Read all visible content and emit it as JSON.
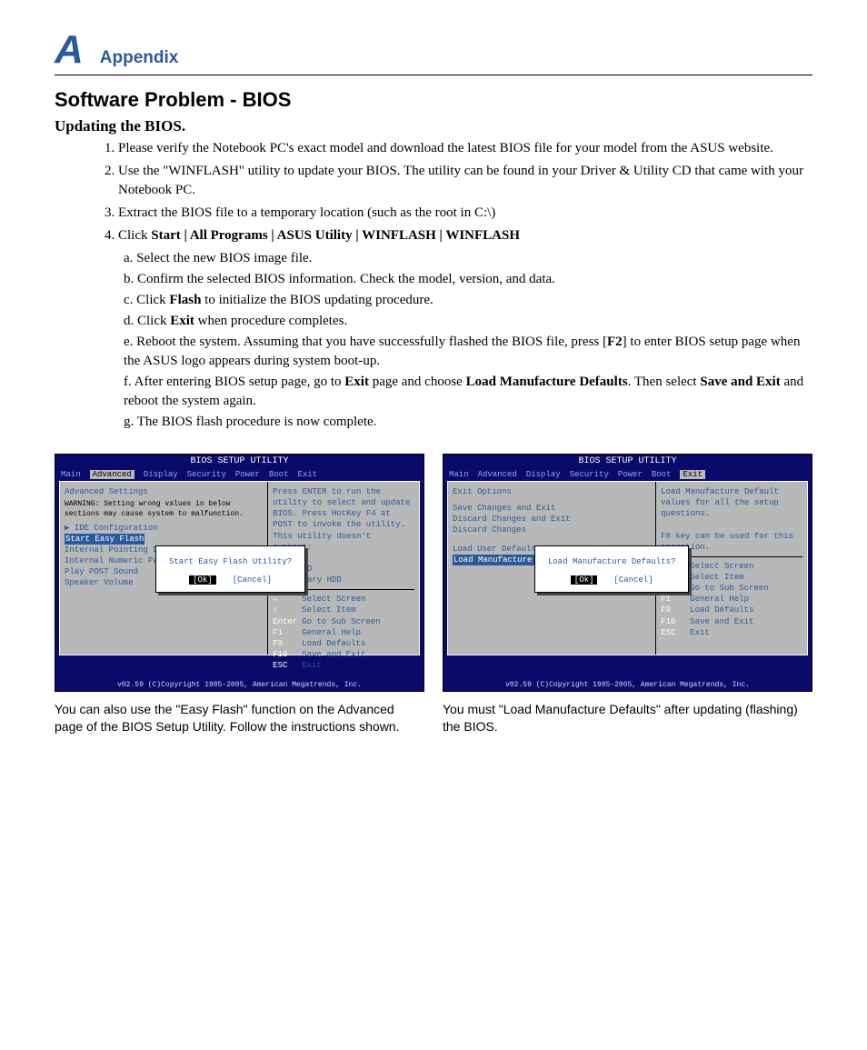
{
  "header": {
    "letter": "A",
    "title": "Appendix"
  },
  "h2": "Software Problem - BIOS",
  "h3": "Updating the BIOS.",
  "steps": {
    "s1": "Please verify the Notebook PC's exact model and download the latest BIOS file for your model from the ASUS website.",
    "s2": "Use the \"WINFLASH\" utility to update your BIOS. The utility can be found in your Driver & Utility CD that came with your Notebook PC.",
    "s3": "Extract the BIOS file to a temporary location (such as the root in C:\\)",
    "s4_pre": "Click ",
    "s4_b": "Start | All Programs | ASUS Utility | WINFLASH | WINFLASH"
  },
  "sub": {
    "a": "a. Select the new BIOS image file.",
    "b": "b. Confirm the selected BIOS information. Check the model, version, and data.",
    "c_pre": "c. Click ",
    "c_b": "Flash",
    "c_post": " to initialize the BIOS updating procedure.",
    "d_pre": "d. Click ",
    "d_b": "Exit",
    "d_post": " when procedure completes.",
    "e_pre": "e. Reboot the system. Assuming that you have successfully flashed the BIOS file, press [",
    "e_b": "F2",
    "e_post": "] to enter BIOS setup page when the ASUS logo appears during system boot-up.",
    "f_pre": "f. After entering BIOS setup page, go to ",
    "f_b1": "Exit",
    "f_mid": " page and choose ",
    "f_b2": "Load Manufacture Defaults",
    "f_post": ". Then select ",
    "f_b3": "Save and Exit",
    "f_end": " and reboot the system again.",
    "g": "g. The BIOS flash procedure is now complete."
  },
  "bios_title": "BIOS SETUP UTILITY",
  "bios_footer": "v02.59 (C)Copyright 1985-2005, American Megatrends, Inc.",
  "tabs": [
    "Main",
    "Advanced",
    "Display",
    "Security",
    "Power",
    "Boot",
    "Exit"
  ],
  "left": {
    "heading": "Advanced Settings",
    "warn": "WARNING: Setting wrong values in below sections may cause system to malfunction.",
    "items": [
      "▶ IDE Configuration",
      "Start Easy Flash",
      "Internal Pointing Devi",
      "Internal Numeric Pad L",
      "Play POST Sound",
      "Speaker Volume"
    ],
    "help": "Press ENTER to run the utility to select and update BIOS. Press HotKey F4 at POST to invoke the utility. This utility doesn't support:\n.CDROM\n.USB HDD\n.Secondary HDD",
    "keys": [
      [
        "↔",
        "Select Screen"
      ],
      [
        "↕",
        "Select Item"
      ],
      [
        "Enter",
        "Go to Sub Screen"
      ],
      [
        "F1",
        "General Help"
      ],
      [
        "F9",
        "Load Defaults"
      ],
      [
        "F10",
        "Save and Exit"
      ],
      [
        "ESC",
        "Exit"
      ]
    ],
    "modal": "Start Easy Flash Utility?",
    "ok": "[Ok]",
    "cancel": "[Cancel]"
  },
  "right": {
    "heading": "Exit Options",
    "items": [
      "Save Changes and Exit",
      "Discard Changes and Exit",
      "Discard Changes",
      "",
      "Load User Defaults",
      "Load Manufacture Defau"
    ],
    "help": "Load Manufacture Default values for all the setup questions.\n\nF8 key can be used for this operation.",
    "keys": [
      [
        "↔",
        "Select Screen"
      ],
      [
        "↕",
        "Select Item"
      ],
      [
        "Enter",
        "Go to Sub Screen"
      ],
      [
        "F1",
        "General Help"
      ],
      [
        "F9",
        "Load Defaults"
      ],
      [
        "F10",
        "Save and Exit"
      ],
      [
        "ESC",
        "Exit"
      ]
    ],
    "modal": "Load Manufacture Defaults?",
    "ok": "[Ok]",
    "cancel": "[Cancel]"
  },
  "cap1": "You can also use the \"Easy Flash\" function on the Advanced page of the BIOS Setup Utility. Follow the instructions shown.",
  "cap2": "You must \"Load Manufacture Defaults\" after updating (flashing) the BIOS.",
  "colors": {
    "blue": "#2a5a9a",
    "biosbg": "#0a0a6a",
    "panel": "#b8b8b8"
  }
}
